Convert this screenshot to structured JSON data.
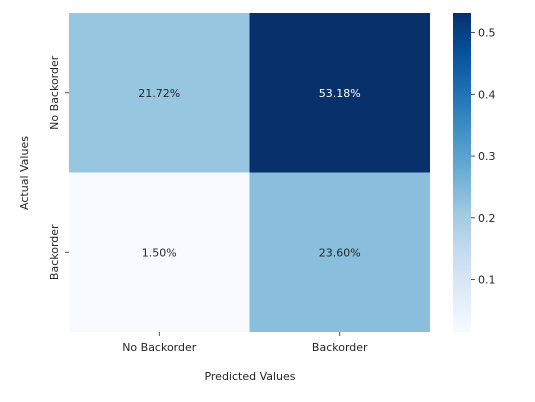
{
  "chart_data": {
    "type": "heatmap",
    "title": "",
    "xlabel": "Predicted Values",
    "ylabel": "Actual Values",
    "x_categories": [
      "No Backorder",
      "Backorder"
    ],
    "y_categories": [
      "No Backorder",
      "Backorder"
    ],
    "values": [
      [
        0.2172,
        0.5318
      ],
      [
        0.015,
        0.236
      ]
    ],
    "cell_labels": [
      [
        "21.72%",
        "53.18%"
      ],
      [
        "1.50%",
        "23.60%"
      ]
    ],
    "colormap": "Blues",
    "colorbar": {
      "range": [
        0.015,
        0.5318
      ],
      "ticks": [
        0.1,
        0.2,
        0.3,
        0.4,
        0.5
      ],
      "tick_labels": [
        "0.1",
        "0.2",
        "0.3",
        "0.4",
        "0.5"
      ]
    },
    "grid": false,
    "legend": "colorbar-right"
  }
}
